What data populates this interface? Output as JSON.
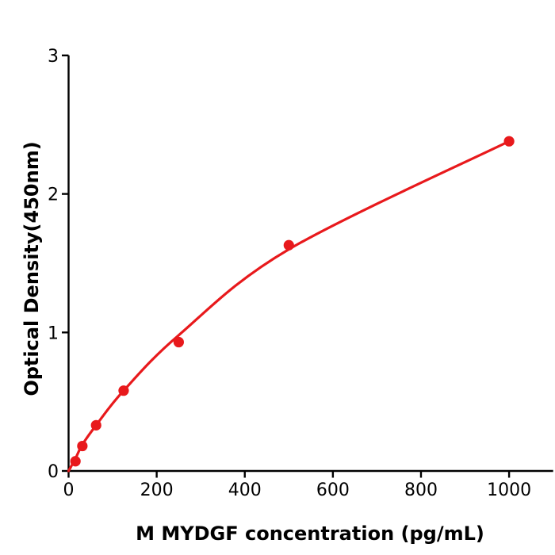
{
  "figure": {
    "background_color": "#ffffff",
    "axis_color": "#000000",
    "accent_color": "#e8191c"
  },
  "chart_data": {
    "type": "scatter",
    "title": "",
    "xlabel": "M  MYDGF concentration (pg/mL)",
    "ylabel": "Optical Density(450nm)",
    "xlim": [
      0,
      1100
    ],
    "ylim": [
      0,
      3
    ],
    "x_ticks": [
      0,
      200,
      400,
      600,
      800,
      1000
    ],
    "y_ticks": [
      0,
      1,
      2,
      3
    ],
    "grid": false,
    "legend_position": "none",
    "series": [
      {
        "name": "measured-standards",
        "type": "scatter",
        "color": "#e8191c",
        "x": [
          15.6,
          31.25,
          62.5,
          125,
          250,
          500,
          1000
        ],
        "y": [
          0.07,
          0.18,
          0.33,
          0.58,
          0.93,
          1.63,
          2.38
        ]
      },
      {
        "name": "fitted-curve",
        "type": "line",
        "color": "#e8191c",
        "x": [
          0,
          15.6,
          31.25,
          62.5,
          125,
          250,
          500,
          1000
        ],
        "y": [
          0.0,
          0.09,
          0.19,
          0.33,
          0.58,
          0.98,
          1.6,
          2.38
        ]
      }
    ]
  }
}
